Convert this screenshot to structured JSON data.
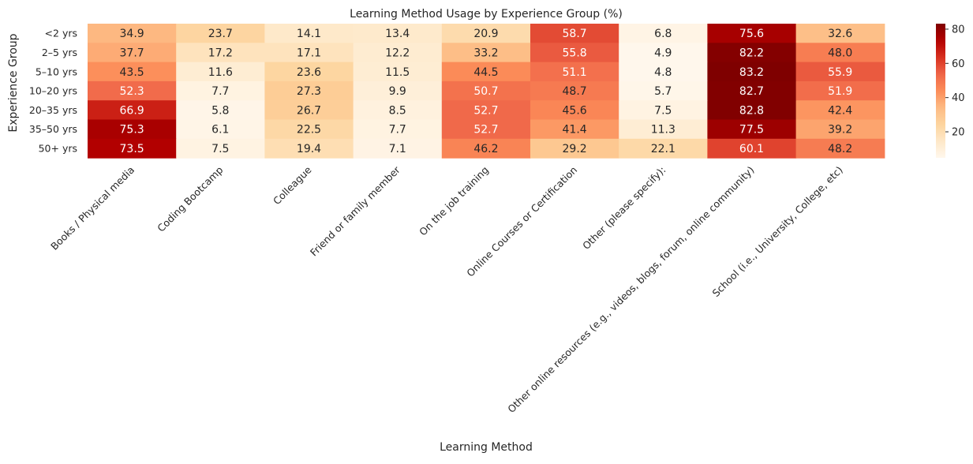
{
  "chart_data": {
    "type": "heatmap",
    "title": "Learning Method Usage by Experience Group (%)",
    "xlabel": "Learning Method",
    "ylabel": "Experience Group",
    "x": [
      "Books / Physical media",
      "Coding Bootcamp",
      "Colleague",
      "Friend or family member",
      "On the job training",
      "Online Courses or Certification",
      "Other (please specify):",
      "Other online resources (e.g., videos, blogs, forum, online community)",
      "School (i.e., University, College, etc)"
    ],
    "y": [
      "<2 yrs",
      "2–5 yrs",
      "5–10 yrs",
      "10–20 yrs",
      "20–35 yrs",
      "35–50 yrs",
      "50+ yrs"
    ],
    "values": [
      [
        34.9,
        23.7,
        14.1,
        13.4,
        20.9,
        58.7,
        6.8,
        75.6,
        32.6
      ],
      [
        37.7,
        17.2,
        17.1,
        12.2,
        33.2,
        55.8,
        4.9,
        82.2,
        48.0
      ],
      [
        43.5,
        11.6,
        23.6,
        11.5,
        44.5,
        51.1,
        4.8,
        83.2,
        55.9
      ],
      [
        52.3,
        7.7,
        27.3,
        9.9,
        50.7,
        48.7,
        5.7,
        82.7,
        51.9
      ],
      [
        66.9,
        5.8,
        26.7,
        8.5,
        52.7,
        45.6,
        7.5,
        82.8,
        42.4
      ],
      [
        75.3,
        6.1,
        22.5,
        7.7,
        52.7,
        41.4,
        11.3,
        77.5,
        39.2
      ],
      [
        73.5,
        7.5,
        19.4,
        7.1,
        46.2,
        29.2,
        22.1,
        60.1,
        48.2
      ]
    ],
    "colormap": "OrRd",
    "vmin": 4.8,
    "vmax": 83.2,
    "colorbar_ticks": [
      20,
      40,
      60,
      80
    ]
  }
}
